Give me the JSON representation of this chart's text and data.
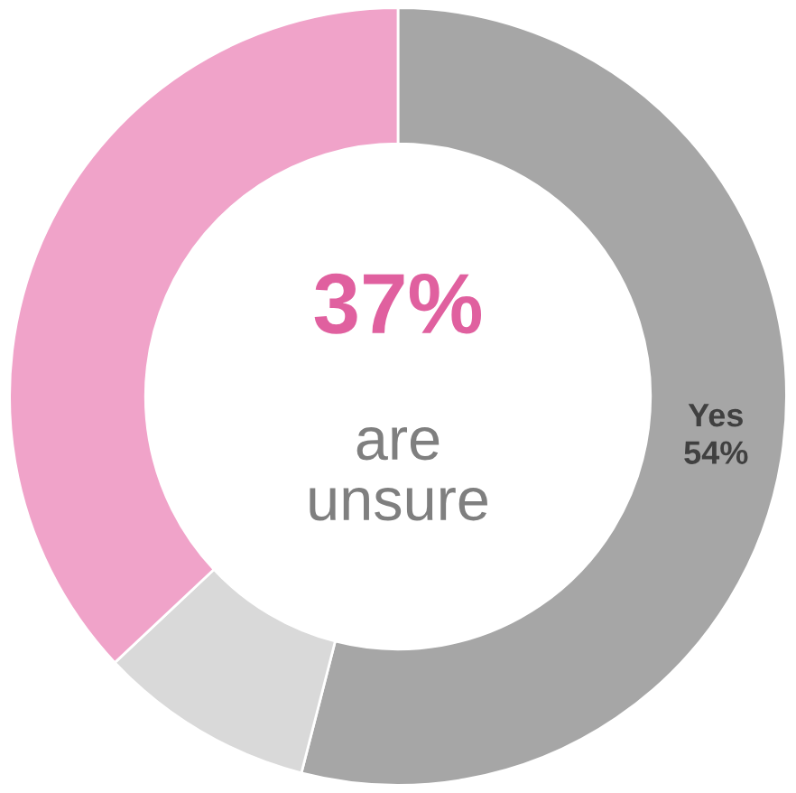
{
  "chart_data": {
    "type": "donut",
    "categories": [
      "Yes",
      null,
      null
    ],
    "values": [
      54,
      9,
      37
    ],
    "colors": [
      "#a6a6a6",
      "#d9d9d9",
      "#f0a3c9"
    ],
    "value_labels": [
      "54%",
      null,
      null
    ],
    "annotations": [
      "37%",
      "are\nunsure"
    ],
    "legend": false
  }
}
